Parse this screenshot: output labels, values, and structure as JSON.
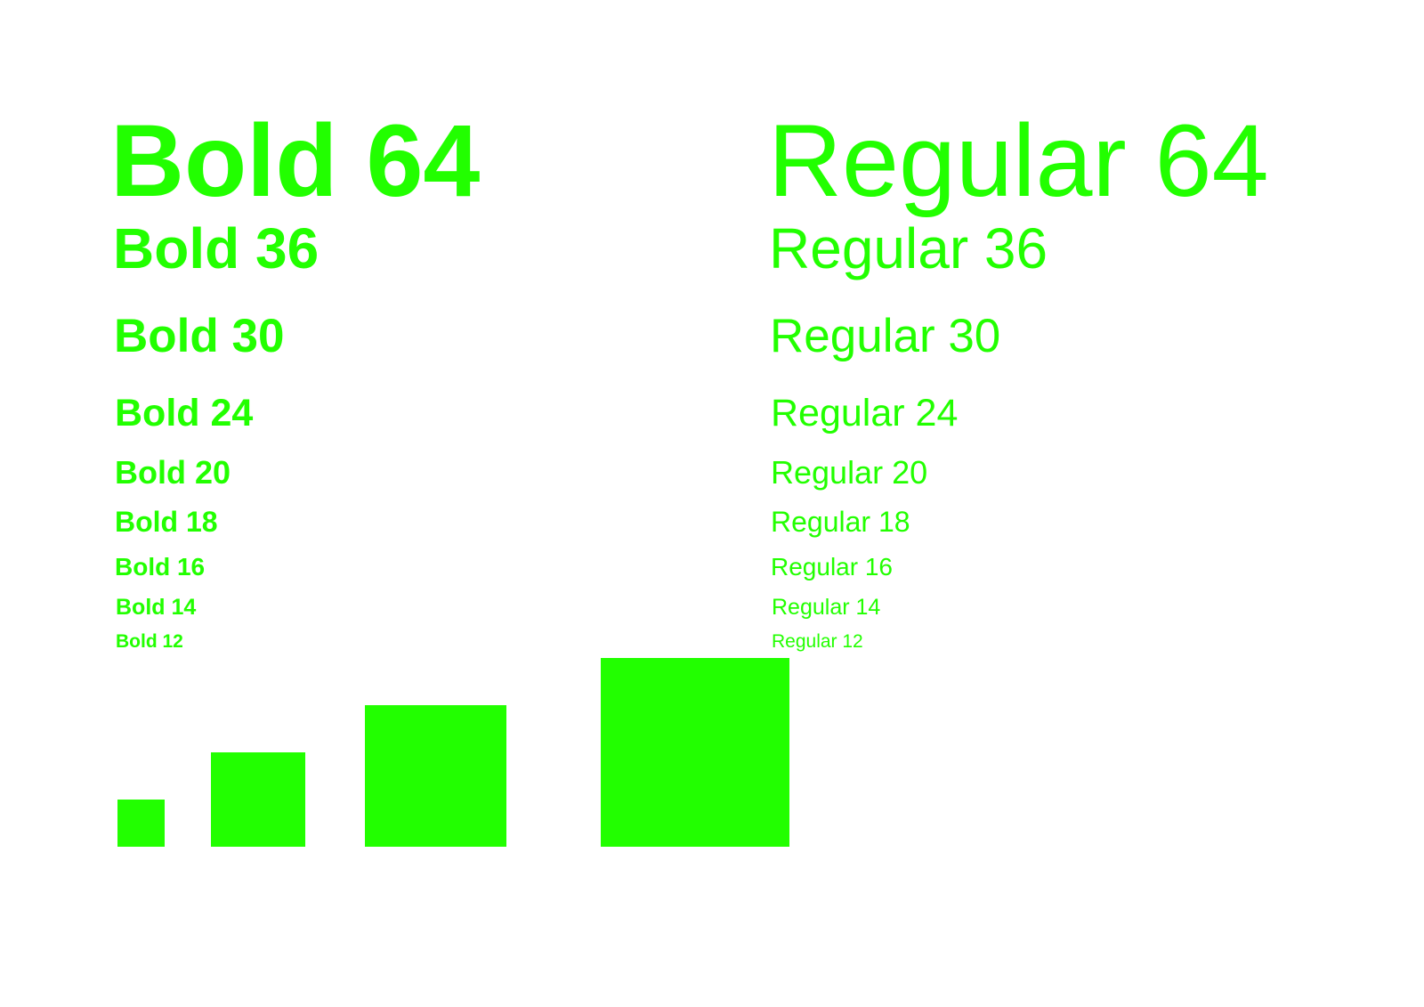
{
  "accent_color": "#22ff00",
  "background_color": "#ffffff",
  "bold_samples": [
    {
      "label": "Bold 64"
    },
    {
      "label": "Bold 36"
    },
    {
      "label": "Bold 30"
    },
    {
      "label": "Bold 24"
    },
    {
      "label": "Bold 20"
    },
    {
      "label": "Bold 18"
    },
    {
      "label": "Bold 16"
    },
    {
      "label": "Bold 14"
    },
    {
      "label": "Bold 12"
    }
  ],
  "regular_samples": [
    {
      "label": "Regular 64"
    },
    {
      "label": "Regular 36"
    },
    {
      "label": "Regular 30"
    },
    {
      "label": "Regular 24"
    },
    {
      "label": "Regular 20"
    },
    {
      "label": "Regular 18"
    },
    {
      "label": "Regular 16"
    },
    {
      "label": "Regular 14"
    },
    {
      "label": "Regular 12"
    }
  ],
  "swatches": [
    {
      "name": "small-square"
    },
    {
      "name": "medium-square"
    },
    {
      "name": "large-square"
    },
    {
      "name": "extra-large-square"
    }
  ]
}
